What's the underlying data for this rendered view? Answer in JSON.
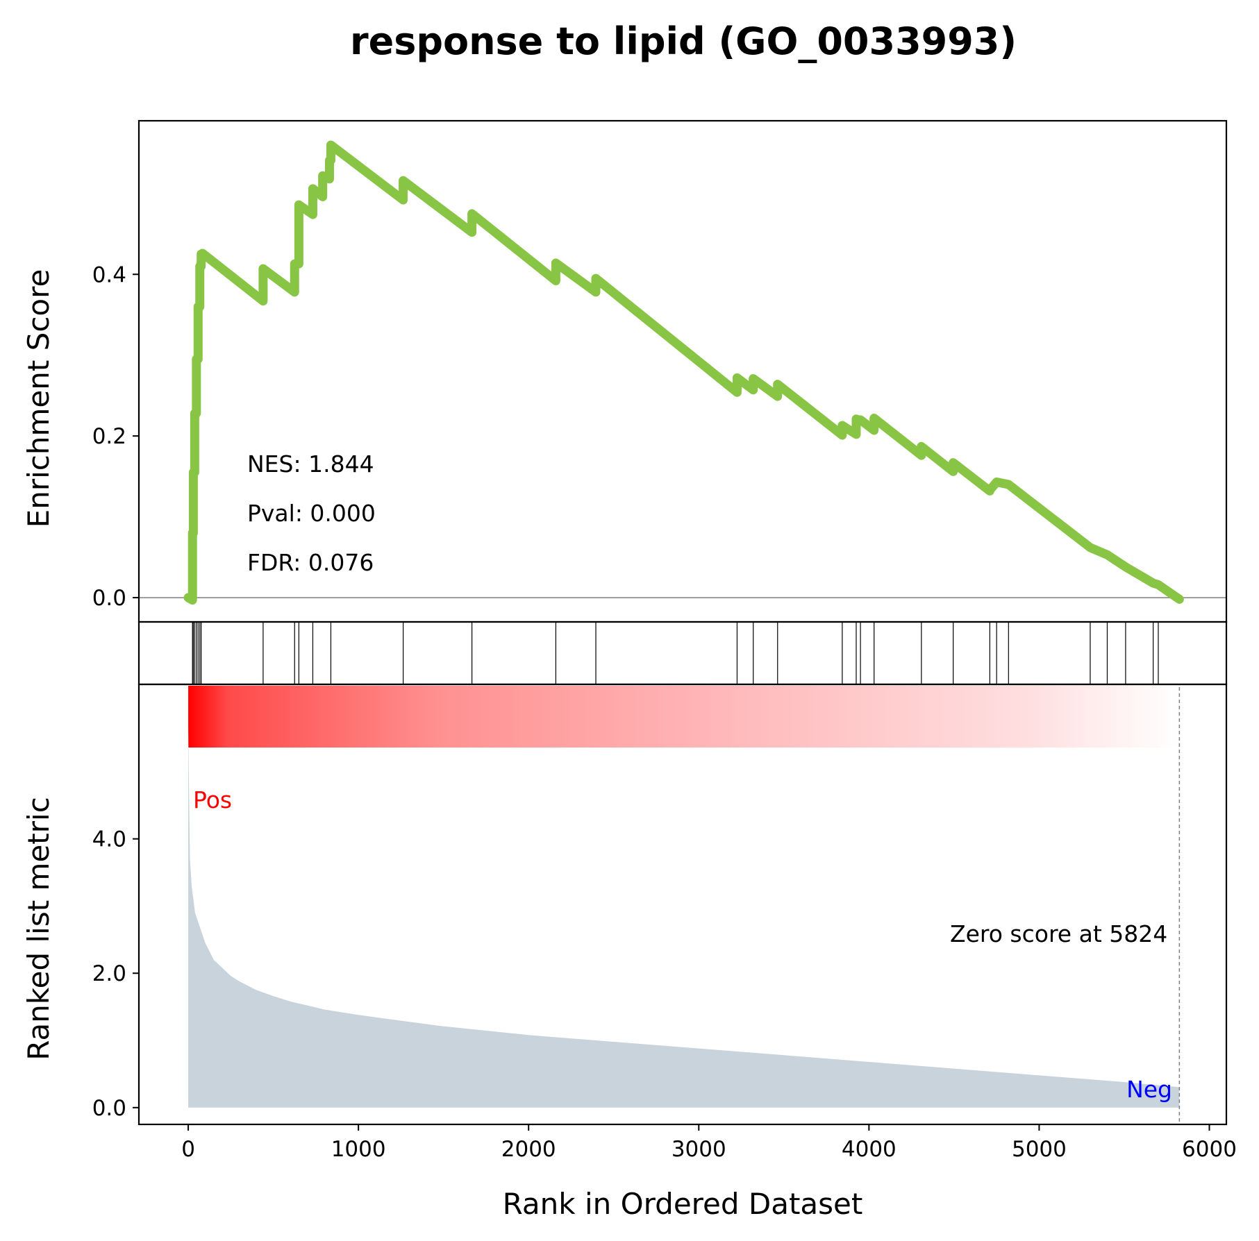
{
  "chart_data": {
    "type": "line",
    "title": "response to lipid (GO_0033993)",
    "xlabel": "Rank in Ordered Dataset",
    "xlim": [
      -290,
      6100
    ],
    "xticks": [
      0,
      1000,
      2000,
      3000,
      4000,
      5000,
      6000
    ],
    "xtick_labels": [
      "0",
      "1000",
      "2000",
      "3000",
      "4000",
      "5000",
      "6000"
    ],
    "enrichment_panel": {
      "ylabel": "Enrichment Score",
      "ylim": [
        -0.03,
        0.59
      ],
      "yticks": [
        0.0,
        0.2,
        0.4
      ],
      "ytick_labels": [
        "0.0",
        "0.2",
        "0.4"
      ],
      "line_color": "#88c544",
      "zero_line_color": "#7f7f7f",
      "stats": {
        "nes": "NES: 1.844",
        "pval": "Pval: 0.000",
        "fdr": "FDR: 0.076"
      },
      "series": [
        {
          "x": [
            0,
            25,
            25,
            30,
            30,
            38,
            38,
            48,
            48,
            58,
            58,
            68,
            68,
            76,
            76,
            84,
            84,
            440,
            440,
            625,
            625,
            650,
            650,
            732,
            732,
            790,
            790,
            830,
            830,
            838,
            838,
            1263,
            1263,
            1667,
            1667,
            2160,
            2160,
            2395,
            2395,
            3225,
            3225,
            3320,
            3320,
            3463,
            3463,
            3843,
            3843,
            3925,
            3925,
            3950,
            3950,
            4030,
            4030,
            4308,
            4308,
            4495,
            4495,
            4710,
            4710,
            4750,
            4750,
            4820,
            4820,
            5300,
            5300,
            5400,
            5400,
            5508,
            5508,
            5670,
            5670,
            5700,
            5700,
            5824
          ],
          "y": [
            0.0,
            -0.003,
            0.08,
            0.08,
            0.155,
            0.155,
            0.228,
            0.228,
            0.295,
            0.295,
            0.36,
            0.36,
            0.41,
            0.41,
            0.425,
            0.425,
            0.426,
            0.367,
            0.407,
            0.378,
            0.413,
            0.413,
            0.486,
            0.474,
            0.506,
            0.496,
            0.522,
            0.518,
            0.541,
            0.541,
            0.56,
            0.492,
            0.516,
            0.452,
            0.475,
            0.392,
            0.414,
            0.378,
            0.395,
            0.254,
            0.272,
            0.257,
            0.271,
            0.249,
            0.264,
            0.201,
            0.213,
            0.202,
            0.221,
            0.219,
            0.22,
            0.207,
            0.222,
            0.176,
            0.187,
            0.156,
            0.167,
            0.132,
            0.133,
            0.143,
            0.143,
            0.14,
            0.14,
            0.062,
            0.062,
            0.053,
            0.053,
            0.038,
            0.038,
            0.018,
            0.018,
            0.016,
            0.016,
            -0.002
          ]
        }
      ]
    },
    "hits_panel": {
      "hits": [
        25,
        30,
        38,
        48,
        58,
        68,
        76,
        440,
        625,
        650,
        732,
        838,
        1263,
        1667,
        2160,
        2395,
        3225,
        3320,
        3463,
        3843,
        3925,
        3950,
        4030,
        4308,
        4495,
        4710,
        4750,
        4820,
        5300,
        5400,
        5508,
        5670,
        5700
      ]
    },
    "colorbar": {
      "start_color": "#ff0000",
      "end_color": "#ffffff",
      "x_range": [
        0,
        5824
      ]
    },
    "ranked_panel": {
      "ylabel": "Ranked list metric",
      "ylim": [
        -0.25,
        6.3
      ],
      "yticks": [
        0.0,
        2.0,
        4.0
      ],
      "ytick_labels": [
        "0.0",
        "2.0",
        "4.0"
      ],
      "fill_color": "#c8d3db",
      "pos_label": "Pos",
      "pos_color": "#ff0000",
      "neg_label": "Neg",
      "neg_color": "#0000ff",
      "zero_score_label": "Zero score at 5824",
      "zero_score_rank": 5824,
      "metric": {
        "x": [
          0,
          5,
          10,
          20,
          40,
          60,
          100,
          150,
          200,
          250,
          300,
          400,
          500,
          600,
          700,
          800,
          1000,
          1200,
          1500,
          2000,
          2500,
          3000,
          3500,
          4000,
          4500,
          5000,
          5500,
          5800,
          5824
        ],
        "y": [
          5.7,
          4.6,
          3.7,
          3.3,
          2.9,
          2.75,
          2.45,
          2.2,
          2.08,
          1.96,
          1.88,
          1.75,
          1.66,
          1.58,
          1.52,
          1.46,
          1.38,
          1.31,
          1.21,
          1.08,
          0.98,
          0.88,
          0.78,
          0.68,
          0.58,
          0.48,
          0.38,
          0.31,
          0.3
        ]
      }
    }
  }
}
